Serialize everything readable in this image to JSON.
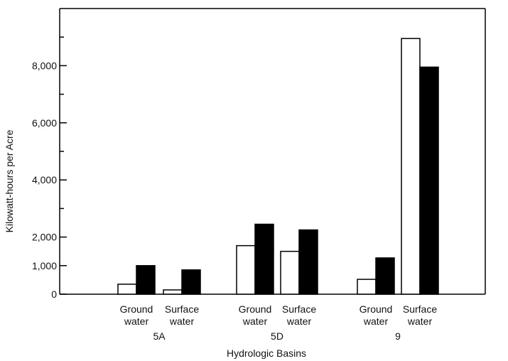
{
  "chart_data": {
    "type": "bar",
    "xlabel": "Hydrologic Basins",
    "ylabel": "Kilowatt-hours per Acre",
    "ylim": [
      0,
      10000
    ],
    "yticks": [
      0,
      1000,
      2000,
      4000,
      6000,
      8000
    ],
    "ytick_labels": [
      "0",
      "1,000",
      "2,000",
      "4,000",
      "6,000",
      "8,000"
    ],
    "grid": false,
    "legend": "none",
    "colors": {
      "open": "#ffffff",
      "solid": "#000000",
      "stroke": "#000000"
    },
    "basins": [
      {
        "label": "5A",
        "groups": [
          {
            "label_line1": "Ground",
            "label_line2": "water",
            "values": [
              350,
              1000
            ]
          },
          {
            "label_line1": "Surface",
            "label_line2": "water",
            "values": [
              150,
              850
            ]
          }
        ]
      },
      {
        "label": "5D",
        "groups": [
          {
            "label_line1": "Ground",
            "label_line2": "water",
            "values": [
              1700,
              2450
            ]
          },
          {
            "label_line1": "Surface",
            "label_line2": "water",
            "values": [
              1500,
              2250
            ]
          }
        ]
      },
      {
        "label": "9",
        "groups": [
          {
            "label_line1": "Ground",
            "label_line2": "water",
            "values": [
              520,
              1270
            ]
          },
          {
            "label_line1": "Surface",
            "label_line2": "water",
            "values": [
              8950,
              7950
            ]
          }
        ]
      }
    ]
  }
}
